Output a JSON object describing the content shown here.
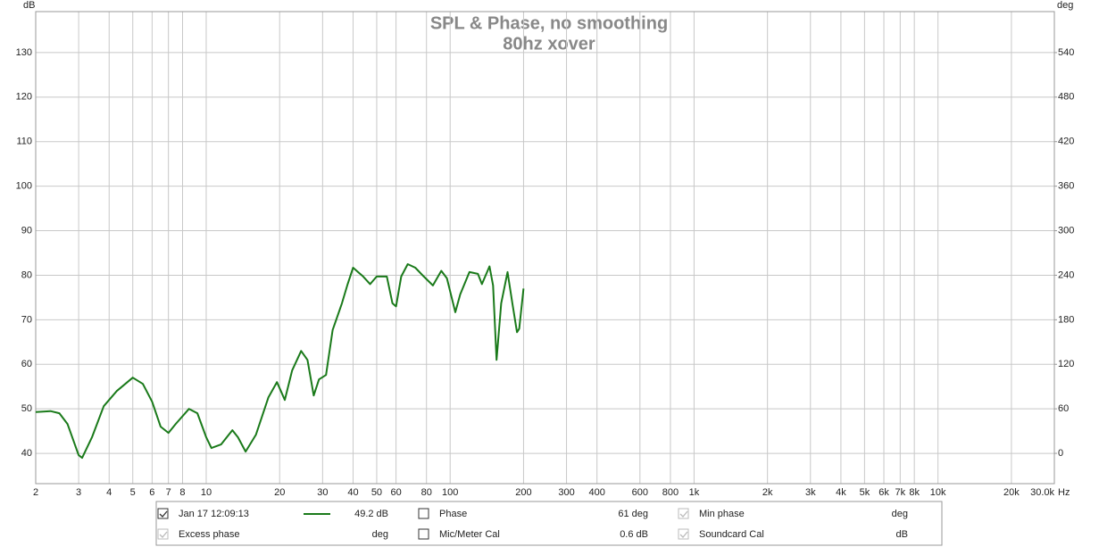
{
  "chart_data": {
    "type": "line",
    "title": "SPL & Phase, no smoothing",
    "subtitle": "80hz xover",
    "y_unit": "dB",
    "y2_unit": "deg",
    "x_unit": "Hz",
    "log_x": true,
    "grid": true,
    "xlim": [
      2,
      30000
    ],
    "ylim": [
      33.2,
      139.2
    ],
    "y2lim": [
      -40.8,
      595.2
    ],
    "xticks": [
      2,
      3,
      4,
      5,
      6,
      7,
      8,
      10,
      20,
      30,
      40,
      50,
      60,
      80,
      100,
      200,
      300,
      400,
      600,
      800,
      {
        "value": 1000,
        "label": "1k"
      },
      {
        "value": 2000,
        "label": "2k"
      },
      {
        "value": 3000,
        "label": "3k"
      },
      {
        "value": 4000,
        "label": "4k"
      },
      {
        "value": 5000,
        "label": "5k"
      },
      {
        "value": 6000,
        "label": "6k"
      },
      {
        "value": 7000,
        "label": "7k"
      },
      {
        "value": 8000,
        "label": "8k"
      },
      {
        "value": 10000,
        "label": "10k"
      },
      {
        "value": 20000,
        "label": "20k"
      },
      {
        "value": 30000,
        "label": "30.0k"
      }
    ],
    "yticks": [
      40,
      50,
      60,
      70,
      80,
      90,
      100,
      110,
      120,
      130
    ],
    "y2ticks": [
      0,
      60,
      120,
      180,
      240,
      300,
      360,
      420,
      480,
      540
    ],
    "x": [
      2,
      2.3,
      2.5,
      2.7,
      3.0,
      3.1,
      3.4,
      3.8,
      4.3,
      5,
      5.5,
      6,
      6.5,
      7,
      7.5,
      8.5,
      9.2,
      10,
      10.5,
      11.5,
      12.8,
      13.5,
      14.5,
      16,
      18,
      19.5,
      21,
      22.5,
      24.5,
      26,
      27.6,
      29,
      31,
      33,
      36,
      38,
      40,
      44,
      47,
      50,
      55,
      58,
      60,
      63,
      67,
      72,
      78,
      85,
      92,
      97,
      105,
      110,
      120,
      130,
      135,
      145,
      150,
      155,
      162,
      172,
      180,
      188,
      192,
      200
    ],
    "series": [
      {
        "name": "Jan 17 12:09:13",
        "color": "#1a7a1a",
        "values": [
          49.3,
          49.5,
          49.0,
          46.6,
          39.6,
          39.0,
          43.6,
          50.6,
          54,
          57,
          55.6,
          51.6,
          46,
          44.6,
          46.6,
          50,
          49,
          43.6,
          41.2,
          42,
          45.2,
          43.6,
          40.4,
          44.2,
          52.6,
          56,
          52,
          58.6,
          63,
          61,
          53,
          56.6,
          57.6,
          67.7,
          73.7,
          78,
          81.7,
          79.7,
          78,
          79.7,
          79.7,
          73.7,
          73,
          79.7,
          82.5,
          81.7,
          79.7,
          77.7,
          81,
          79.3,
          71.7,
          75.7,
          80.7,
          80.3,
          78,
          82,
          77.7,
          61,
          73.7,
          80.7,
          73.7,
          67.2,
          68,
          77
        ]
      }
    ]
  },
  "panel": {
    "rows": [
      [
        {
          "checked": true,
          "label": "Jan 17 12:09:13",
          "value": "49.2 dB",
          "active": true,
          "swatch": true
        },
        {
          "checked": false,
          "label": "Phase",
          "value": "61 deg",
          "active": true
        },
        {
          "checked": true,
          "label": "Min phase",
          "value": "deg",
          "active": false
        }
      ],
      [
        {
          "checked": true,
          "label": "Excess phase",
          "value": "deg",
          "active": false
        },
        {
          "checked": false,
          "label": "Mic/Meter Cal",
          "value": "0.6 dB",
          "active": true,
          "plain": true
        },
        {
          "checked": true,
          "label": "Soundcard Cal",
          "value": "dB",
          "active": false
        }
      ]
    ]
  }
}
